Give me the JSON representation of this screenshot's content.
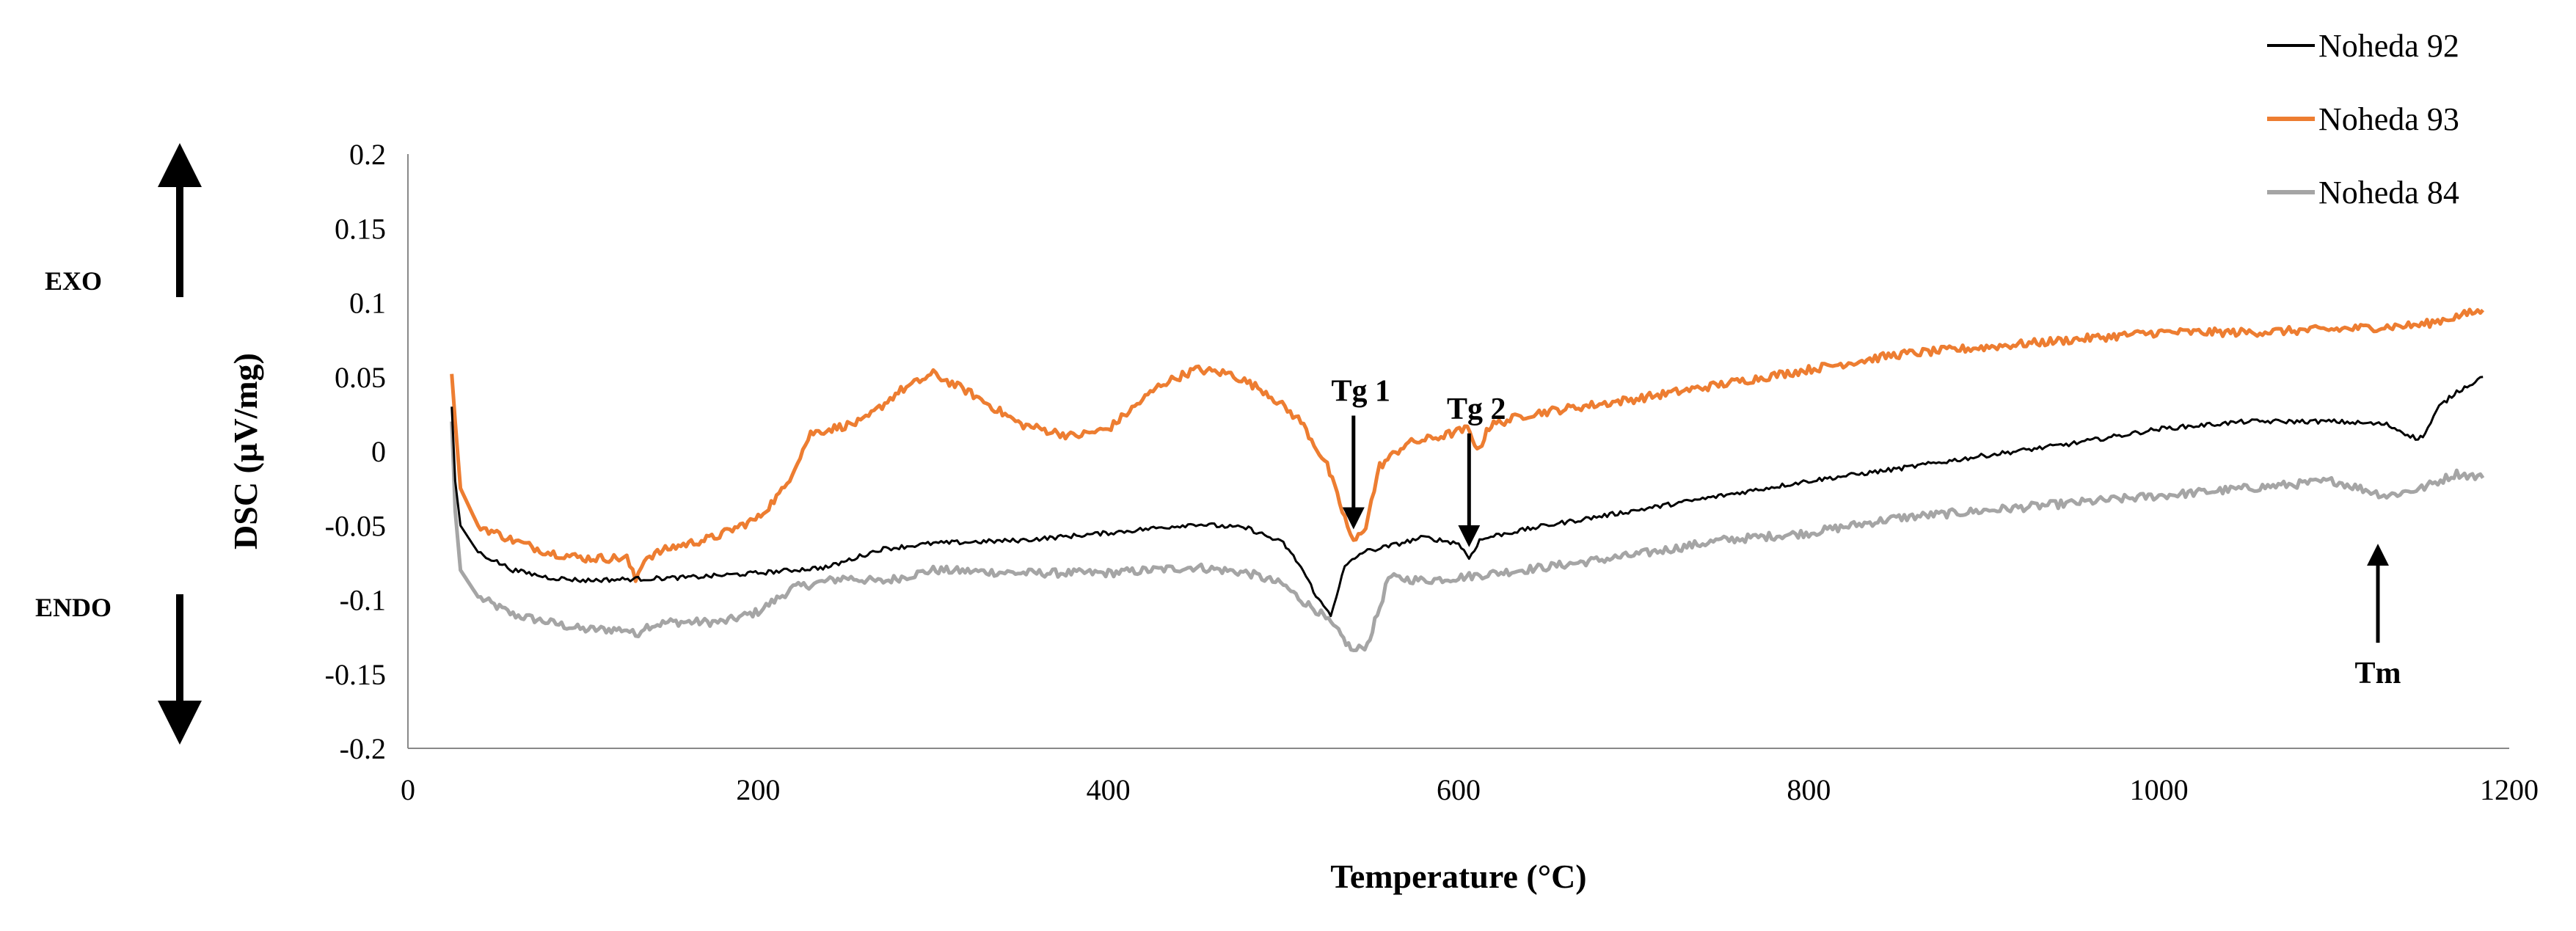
{
  "chart_data": {
    "type": "line",
    "title": "",
    "xlabel": "Temperature (°C)",
    "ylabel": "DSC (µV/mg)",
    "xlim": [
      0,
      1200
    ],
    "ylim": [
      -0.2,
      0.2
    ],
    "x_ticks": [
      "0",
      "200",
      "400",
      "600",
      "800",
      "1000",
      "1200"
    ],
    "y_ticks": [
      "0.2",
      "0.15",
      "0.1",
      "0.05",
      "0",
      "-0.05",
      "-0.1",
      "-0.15",
      "-0.2"
    ],
    "grid": false,
    "legend_position": "top-right",
    "series": [
      {
        "name": "Noheda 92",
        "color": "#000000",
        "x": [
          25,
          27,
          30,
          40,
          60,
          80,
          100,
          130,
          160,
          200,
          240,
          270,
          300,
          350,
          400,
          450,
          480,
          500,
          510,
          520,
          527,
          535,
          545,
          560,
          580,
          600,
          606,
          612,
          620,
          650,
          700,
          750,
          800,
          850,
          900,
          950,
          1000,
          1050,
          1100,
          1130,
          1148,
          1152,
          1160,
          1170,
          1185
        ],
        "values": [
          0.03,
          -0.02,
          -0.05,
          -0.068,
          -0.08,
          -0.085,
          -0.087,
          -0.086,
          -0.085,
          -0.082,
          -0.078,
          -0.066,
          -0.062,
          -0.06,
          -0.055,
          -0.049,
          -0.052,
          -0.062,
          -0.078,
          -0.1,
          -0.11,
          -0.078,
          -0.068,
          -0.064,
          -0.058,
          -0.062,
          -0.072,
          -0.06,
          -0.057,
          -0.05,
          -0.04,
          -0.03,
          -0.02,
          -0.012,
          -0.003,
          0.005,
          0.015,
          0.02,
          0.02,
          0.018,
          0.008,
          0.012,
          0.03,
          0.04,
          0.05
        ]
      },
      {
        "name": "Noheda 93",
        "color": "#ED7D31",
        "x": [
          25,
          27,
          30,
          40,
          60,
          80,
          100,
          125,
          130,
          135,
          150,
          175,
          200,
          215,
          230,
          260,
          280,
          300,
          320,
          350,
          380,
          400,
          430,
          450,
          470,
          490,
          510,
          525,
          535,
          540,
          547,
          555,
          570,
          590,
          605,
          612,
          616,
          620,
          640,
          700,
          750,
          800,
          850,
          900,
          950,
          1000,
          1050,
          1100,
          1150,
          1185
        ],
        "values": [
          0.052,
          0.02,
          -0.025,
          -0.05,
          -0.06,
          -0.068,
          -0.072,
          -0.072,
          -0.087,
          -0.072,
          -0.065,
          -0.058,
          -0.045,
          -0.025,
          0.012,
          0.02,
          0.04,
          0.052,
          0.04,
          0.018,
          0.01,
          0.015,
          0.045,
          0.055,
          0.052,
          0.04,
          0.02,
          -0.01,
          -0.045,
          -0.062,
          -0.05,
          -0.01,
          0.005,
          0.01,
          0.015,
          0.0,
          0.015,
          0.018,
          0.025,
          0.035,
          0.045,
          0.055,
          0.065,
          0.07,
          0.075,
          0.08,
          0.08,
          0.082,
          0.085,
          0.095
        ]
      },
      {
        "name": "Noheda 84",
        "color": "#A5A5A5",
        "x": [
          25,
          27,
          30,
          40,
          60,
          80,
          100,
          125,
          130,
          135,
          150,
          180,
          200,
          220,
          250,
          270,
          300,
          350,
          400,
          450,
          480,
          500,
          510,
          520,
          530,
          540,
          548,
          555,
          560,
          580,
          600,
          650,
          700,
          750,
          800,
          850,
          900,
          950,
          1000,
          1050,
          1100,
          1130,
          1150,
          1170,
          1185
        ],
        "values": [
          0.02,
          -0.04,
          -0.08,
          -0.098,
          -0.11,
          -0.115,
          -0.12,
          -0.12,
          -0.124,
          -0.118,
          -0.115,
          -0.115,
          -0.108,
          -0.092,
          -0.085,
          -0.088,
          -0.08,
          -0.082,
          -0.082,
          -0.078,
          -0.082,
          -0.09,
          -0.1,
          -0.108,
          -0.12,
          -0.135,
          -0.13,
          -0.105,
          -0.085,
          -0.087,
          -0.085,
          -0.078,
          -0.07,
          -0.06,
          -0.055,
          -0.045,
          -0.04,
          -0.035,
          -0.03,
          -0.025,
          -0.02,
          -0.03,
          -0.025,
          -0.015,
          -0.018
        ]
      }
    ],
    "annotations": [
      {
        "text": "Tg 1",
        "x": 540,
        "y": -0.06,
        "arrow": "down"
      },
      {
        "text": "Tg 2",
        "x": 606,
        "y": -0.072,
        "arrow": "down"
      },
      {
        "text": "Tm",
        "x": 1125,
        "y": -0.045,
        "arrow": "up"
      }
    ],
    "side_labels": {
      "exo": "EXO",
      "endo": "ENDO"
    }
  }
}
